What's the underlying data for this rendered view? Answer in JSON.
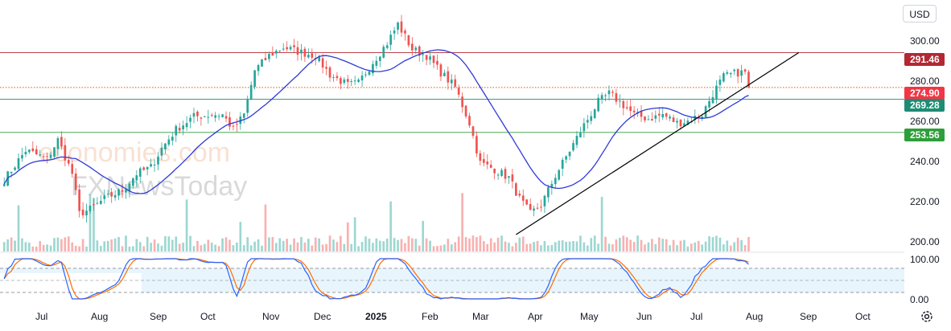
{
  "currency": "USD",
  "watermark": {
    "line1": "economies.com",
    "line2": "FXNewsToday"
  },
  "price_ticks": [
    "300.00",
    "280.00",
    "260.00",
    "240.00",
    "220.00",
    "200.00"
  ],
  "osc_ticks": [
    "100.00",
    "0.00"
  ],
  "months": [
    "Jul",
    "Aug",
    "Sep",
    "Oct",
    "Nov",
    "Dec",
    "2025",
    "Feb",
    "Mar",
    "Apr",
    "May",
    "Jun",
    "Jul",
    "Aug",
    "Sep",
    "Oct"
  ],
  "levels": [
    {
      "value": 291.46,
      "label": "291.46",
      "color": "#b22833",
      "style": "solid"
    },
    {
      "value": 274.9,
      "label": "274.90",
      "color": "#f23645",
      "style": "dotted",
      "line_color": "#e07b39"
    },
    {
      "value": 269.28,
      "label": "269.28",
      "color": "#1e8c74",
      "style": "solid"
    },
    {
      "value": 253.56,
      "label": "253.56",
      "color": "#2e9e3a",
      "style": "solid"
    }
  ],
  "colors": {
    "up": "#26a69a",
    "down": "#ef5350",
    "ma": "#2f3ad6",
    "stoch_k": "#2962ff",
    "stoch_d": "#ff6d00",
    "trend": "#000000"
  },
  "chart_data": {
    "type": "candlestick",
    "price_axis": {
      "min": 197,
      "max": 313,
      "ticks": [
        200,
        220,
        240,
        260,
        280,
        300
      ]
    },
    "oscillator_axis": {
      "min": 0,
      "max": 100,
      "ticks": [
        0,
        100
      ],
      "bands": [
        20,
        50,
        80
      ]
    },
    "price_path": [
      [
        0,
        231
      ],
      [
        6,
        245
      ],
      [
        12,
        241
      ],
      [
        15,
        250
      ],
      [
        19,
        234
      ],
      [
        21,
        215
      ],
      [
        24,
        217
      ],
      [
        28,
        222
      ],
      [
        33,
        226
      ],
      [
        37,
        234
      ],
      [
        41,
        237
      ],
      [
        44,
        246
      ],
      [
        48,
        255
      ],
      [
        53,
        261
      ],
      [
        58,
        262
      ],
      [
        61,
        262
      ],
      [
        64,
        255
      ],
      [
        67,
        262
      ],
      [
        70,
        283
      ],
      [
        74,
        290
      ],
      [
        78,
        294
      ],
      [
        82,
        292
      ],
      [
        87,
        290
      ],
      [
        91,
        281
      ],
      [
        96,
        276
      ],
      [
        99,
        277
      ],
      [
        103,
        287
      ],
      [
        107,
        296
      ],
      [
        110,
        305
      ],
      [
        114,
        293
      ],
      [
        118,
        290
      ],
      [
        122,
        282
      ],
      [
        126,
        275
      ],
      [
        130,
        258
      ],
      [
        133,
        239
      ],
      [
        137,
        236
      ],
      [
        141,
        232
      ],
      [
        144,
        222
      ],
      [
        147,
        215
      ],
      [
        150,
        219
      ],
      [
        154,
        233
      ],
      [
        158,
        245
      ],
      [
        162,
        257
      ],
      [
        166,
        268
      ],
      [
        169,
        272
      ],
      [
        172,
        268
      ],
      [
        176,
        262
      ],
      [
        180,
        260
      ],
      [
        184,
        262
      ],
      [
        188,
        258
      ],
      [
        191,
        259
      ],
      [
        195,
        262
      ],
      [
        198,
        272
      ],
      [
        201,
        280
      ],
      [
        205,
        282
      ],
      [
        207,
        282
      ],
      [
        208,
        275
      ]
    ],
    "ma_period": 20,
    "trendline": {
      "from": {
        "bar": 143,
        "price": 205
      },
      "to": {
        "bar": 222,
        "price": 291.46
      }
    },
    "volume_seed": 7
  }
}
